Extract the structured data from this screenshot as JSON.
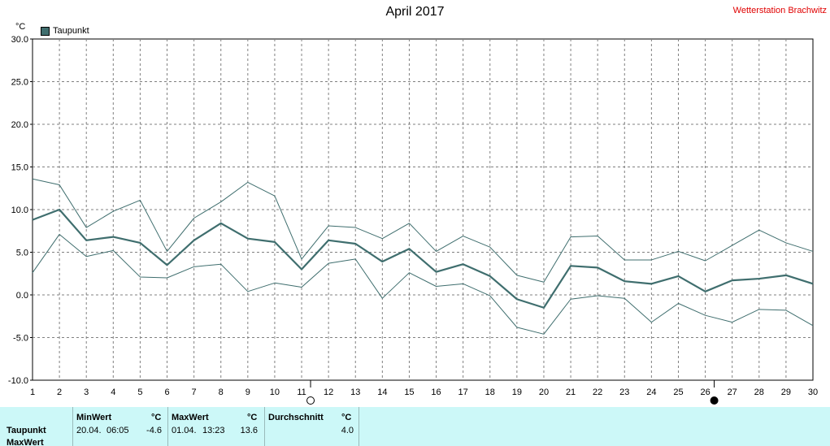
{
  "header": {
    "title": "April 2017",
    "station": "Wetterstation Brachwitz",
    "unit": "°C"
  },
  "legend": {
    "label": "Taupunkt",
    "color": "#3f6e6e"
  },
  "chart_data": {
    "type": "line",
    "title": "April 2017",
    "ylabel": "°C",
    "xlim": [
      1,
      30
    ],
    "ylim": [
      -10,
      30
    ],
    "y_ticks": [
      "30.0",
      "25.0",
      "20.0",
      "15.0",
      "10.0",
      "5.0",
      "0.0",
      "-5.0",
      "-10.0"
    ],
    "x": [
      1,
      2,
      3,
      4,
      5,
      6,
      7,
      8,
      9,
      10,
      11,
      12,
      13,
      14,
      15,
      16,
      17,
      18,
      19,
      20,
      21,
      22,
      23,
      24,
      25,
      26,
      27,
      28,
      29,
      30
    ],
    "grid": true,
    "legend_position": "top-left",
    "series": [
      {
        "name": "Taupunkt",
        "color": "#3f6e6e",
        "values": [
          8.8,
          10.0,
          6.4,
          6.8,
          6.1,
          3.5,
          6.4,
          8.4,
          6.6,
          6.2,
          3.0,
          6.4,
          6.0,
          3.9,
          5.4,
          2.7,
          3.6,
          2.2,
          -0.5,
          -1.5,
          3.4,
          3.2,
          1.6,
          1.3,
          2.2,
          0.4,
          1.7,
          1.9,
          2.3,
          1.3
        ]
      },
      {
        "name": "",
        "color": "#3f6e6e",
        "values": [
          13.6,
          12.9,
          7.9,
          9.8,
          11.1,
          5.1,
          9.0,
          10.9,
          13.2,
          11.6,
          4.2,
          8.1,
          7.9,
          6.6,
          8.4,
          5.1,
          6.9,
          5.6,
          2.3,
          1.5,
          6.8,
          6.9,
          4.1,
          4.1,
          5.1,
          4.0,
          5.8,
          7.6,
          6.1,
          5.1
        ]
      },
      {
        "name": "",
        "color": "#3f6e6e",
        "values": [
          2.6,
          7.1,
          4.5,
          5.2,
          2.1,
          2.0,
          3.3,
          3.6,
          0.4,
          1.4,
          0.9,
          3.7,
          4.2,
          -0.4,
          2.6,
          1.0,
          1.3,
          -0.1,
          -3.8,
          -4.6,
          -0.5,
          -0.1,
          -0.4,
          -3.2,
          -1.0,
          -2.4,
          -3.2,
          -1.7,
          -1.8,
          -3.6
        ]
      }
    ],
    "moon_phases": [
      {
        "day": 11,
        "phase": "full-moon"
      },
      {
        "day": 26,
        "phase": "new-moon"
      }
    ]
  },
  "summary": {
    "columns": {
      "min": "MinWert",
      "max": "MaxWert",
      "avg": "Durchschnitt",
      "unit": "°C"
    },
    "rows": [
      {
        "label": "Taupunkt",
        "min_date": "20.04.",
        "min_time": "06:05",
        "min_value": "-4.6",
        "max_date": "01.04.",
        "max_time": "13:23",
        "max_value": "13.6",
        "avg_value": "4.0"
      },
      {
        "label": "MaxWert"
      }
    ]
  }
}
